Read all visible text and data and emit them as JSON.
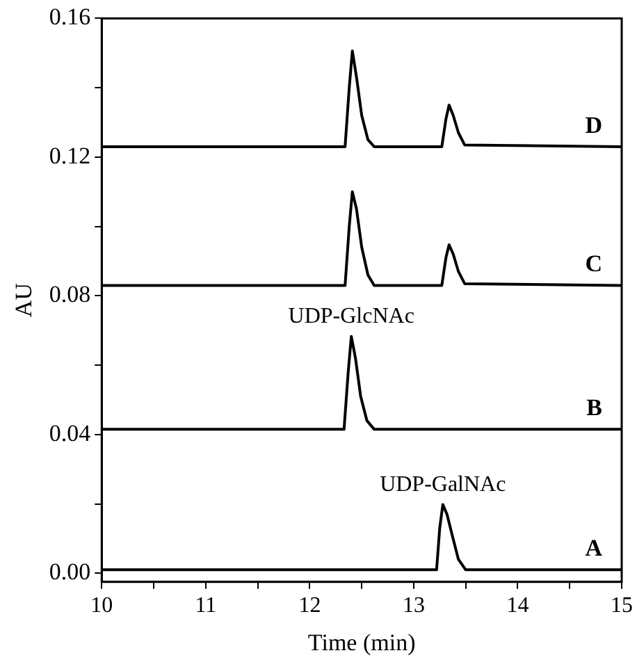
{
  "chart_data": {
    "type": "line",
    "xlabel": "Time (min)",
    "ylabel": "AU",
    "xlim": [
      10,
      15
    ],
    "ylim": [
      -0.0025,
      0.16
    ],
    "xticks": [
      10,
      {
        "value": 10.5,
        "label": null
      },
      11,
      {
        "value": 11.5,
        "label": null
      },
      12,
      {
        "value": 12.5,
        "label": null
      },
      13,
      {
        "value": 13.5,
        "label": null
      },
      14,
      {
        "value": 14.5,
        "label": null
      },
      15
    ],
    "yticks": [
      {
        "value": 0,
        "label": "0.00"
      },
      {
        "value": 0.02,
        "label": null
      },
      {
        "value": 0.04,
        "label": "0.04"
      },
      {
        "value": 0.06,
        "label": null
      },
      {
        "value": 0.08,
        "label": "0.08"
      },
      {
        "value": 0.1,
        "label": null
      },
      {
        "value": 0.12,
        "label": "0.12"
      },
      {
        "value": 0.14,
        "label": null
      },
      {
        "value": 0.16,
        "label": "0.16"
      }
    ],
    "grid": false,
    "legend": false,
    "marker": "none",
    "line_style": "solid",
    "series": [
      {
        "name": "D",
        "color": "#000000",
        "x": [
          10,
          12.34,
          12.38,
          12.41,
          12.45,
          12.5,
          12.56,
          12.62,
          13.27,
          13.31,
          13.34,
          13.38,
          13.43,
          13.49,
          15
        ],
        "values": [
          0.123,
          0.123,
          0.14,
          0.1506,
          0.143,
          0.132,
          0.125,
          0.123,
          0.123,
          0.131,
          0.135,
          0.132,
          0.127,
          0.1235,
          0.123
        ]
      },
      {
        "name": "C",
        "color": "#000000",
        "x": [
          10,
          12.34,
          12.38,
          12.41,
          12.45,
          12.5,
          12.56,
          12.62,
          13.27,
          13.31,
          13.34,
          13.38,
          13.43,
          13.49,
          15
        ],
        "values": [
          0.083,
          0.083,
          0.1,
          0.11,
          0.105,
          0.094,
          0.086,
          0.083,
          0.083,
          0.091,
          0.0947,
          0.092,
          0.087,
          0.0835,
          0.083
        ]
      },
      {
        "name": "B",
        "color": "#000000",
        "x": [
          10,
          12.33,
          12.37,
          12.4,
          12.44,
          12.49,
          12.55,
          12.62,
          15
        ],
        "values": [
          0.0415,
          0.0415,
          0.058,
          0.0683,
          0.062,
          0.051,
          0.044,
          0.0415,
          0.0415
        ]
      },
      {
        "name": "A",
        "color": "#000000",
        "x": [
          10,
          13.22,
          13.25,
          13.28,
          13.32,
          13.37,
          13.43,
          13.5,
          15
        ],
        "values": [
          0.001,
          0.001,
          0.013,
          0.0198,
          0.017,
          0.011,
          0.004,
          0.001,
          0.001
        ]
      }
    ],
    "annotations": [
      {
        "text": "UDP-GlcNAc",
        "x": 12.4,
        "y": 0.0683
      },
      {
        "text": "UDP-GalNAc",
        "x": 13.28,
        "y": 0.0198
      }
    ]
  }
}
